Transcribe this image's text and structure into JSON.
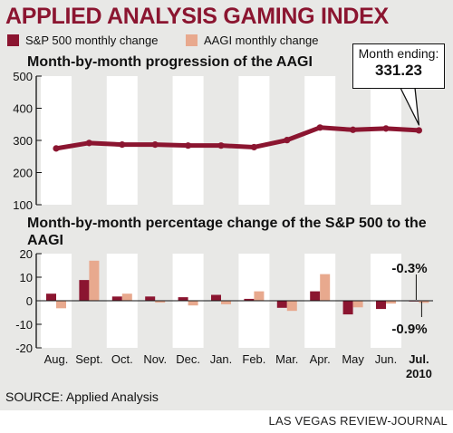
{
  "title": "APPLIED ANALYSIS GAMING INDEX",
  "source": "SOURCE: Applied Analysis",
  "credit": "LAS VEGAS REVIEW-JOURNAL",
  "colors": {
    "title": "#8b1530",
    "sp500": "#8b1530",
    "aagi": "#e8a98e",
    "line": "#8b1530",
    "column_band": "#ffffff"
  },
  "legend": {
    "sp500": "S&P 500 monthly change",
    "aagi": "AAGI monthly change"
  },
  "callout": {
    "label": "Month ending:",
    "value": "331.23"
  },
  "chart_data": [
    {
      "type": "line",
      "title": "Month-by-month progression of the AAGI",
      "categories": [
        "Aug.",
        "Sept.",
        "Oct.",
        "Nov.",
        "Dec.",
        "Jan.",
        "Feb.",
        "Mar.",
        "Apr.",
        "May",
        "Jun.",
        "Jul. 2010"
      ],
      "series": [
        {
          "values": [
            275,
            292,
            287,
            287,
            284,
            284,
            279,
            301,
            340,
            333,
            337,
            331.23
          ]
        }
      ],
      "ylim": [
        100,
        500
      ],
      "yticks": [
        "100",
        "200",
        "300",
        "400",
        "500"
      ],
      "grid": false
    },
    {
      "type": "bar",
      "title": "Month-by-month percentage change of the S&P 500 to the AAGI",
      "categories": [
        "Aug.",
        "Sept.",
        "Oct.",
        "Nov.",
        "Dec.",
        "Jan.",
        "Feb.",
        "Mar.",
        "Apr.",
        "May",
        "Jun.",
        "Jul."
      ],
      "category_sub": {
        "Jul.": "2010"
      },
      "series": [
        {
          "name": "S&P 500 monthly change",
          "values": [
            3.0,
            8.8,
            1.8,
            1.8,
            1.5,
            2.5,
            0.8,
            -3.0,
            4.0,
            -5.8,
            -3.5,
            -0.3
          ]
        },
        {
          "name": "AAGI monthly change",
          "values": [
            -3.2,
            17.0,
            3.0,
            -0.8,
            -2.0,
            -1.5,
            4.0,
            -4.3,
            11.3,
            -2.8,
            -1.2,
            -0.9
          ]
        }
      ],
      "ylim": [
        -20,
        20
      ],
      "yticks": [
        "-20",
        "-10",
        "0",
        "10",
        "20"
      ],
      "annotations": [
        "-0.3%",
        "-0.9%"
      ]
    }
  ]
}
